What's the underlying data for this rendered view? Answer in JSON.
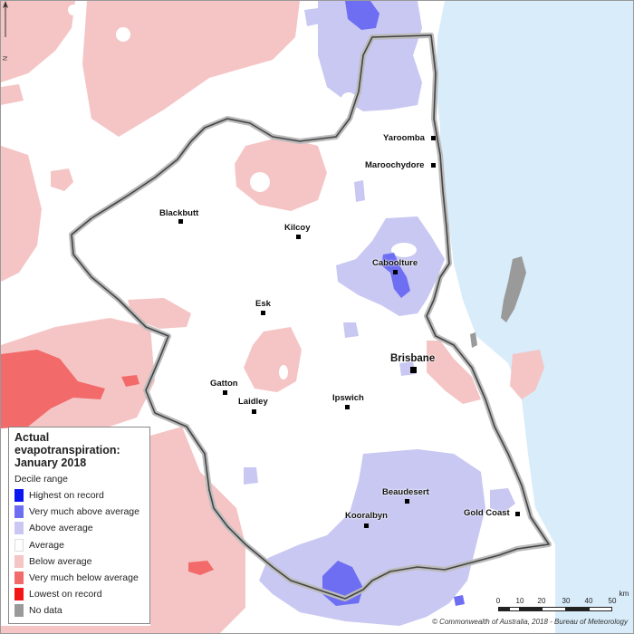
{
  "map": {
    "colors": {
      "highest": "#0a17f0",
      "very_much_above": "#6e6ef3",
      "above": "#c8c8f3",
      "average": "#ffffff",
      "below": "#f5c5c5",
      "very_much_below": "#f26a6a",
      "lowest": "#f21515",
      "no_data": "#9a9a9a",
      "sea": "#d8ecfa",
      "boundary": "#333333"
    },
    "towns": [
      {
        "name": "Yaroomba"
      },
      {
        "name": "Maroochydore"
      },
      {
        "name": "Blackbutt"
      },
      {
        "name": "Kilcoy"
      },
      {
        "name": "Caboolture"
      },
      {
        "name": "Esk"
      },
      {
        "name": "Brisbane"
      },
      {
        "name": "Gatton"
      },
      {
        "name": "Laidley"
      },
      {
        "name": "Ipswich"
      },
      {
        "name": "Beaudesert"
      },
      {
        "name": "Kooralbyn"
      },
      {
        "name": "Gold Coast"
      }
    ],
    "north_letter": "N"
  },
  "legend": {
    "title_line1": "Actual",
    "title_line2": "evapotranspiration:",
    "title_line3": "January 2018",
    "subtitle": "Decile range",
    "items": [
      {
        "label": "Highest on record",
        "color": "#0a17f0"
      },
      {
        "label": "Very much above average",
        "color": "#6e6ef3"
      },
      {
        "label": "Above average",
        "color": "#c8c8f3"
      },
      {
        "label": "Average",
        "color": "#ffffff"
      },
      {
        "label": "Below average",
        "color": "#f5c5c5"
      },
      {
        "label": "Very much below average",
        "color": "#f26a6a"
      },
      {
        "label": "Lowest on record",
        "color": "#f21515"
      },
      {
        "label": "No data",
        "color": "#9a9a9a"
      }
    ]
  },
  "scale": {
    "ticks": [
      "0",
      "10",
      "20",
      "30",
      "40",
      "50"
    ],
    "unit": "km"
  },
  "copyright": "© Commonwealth of Australia, 2018 - Bureau of Meteorology"
}
